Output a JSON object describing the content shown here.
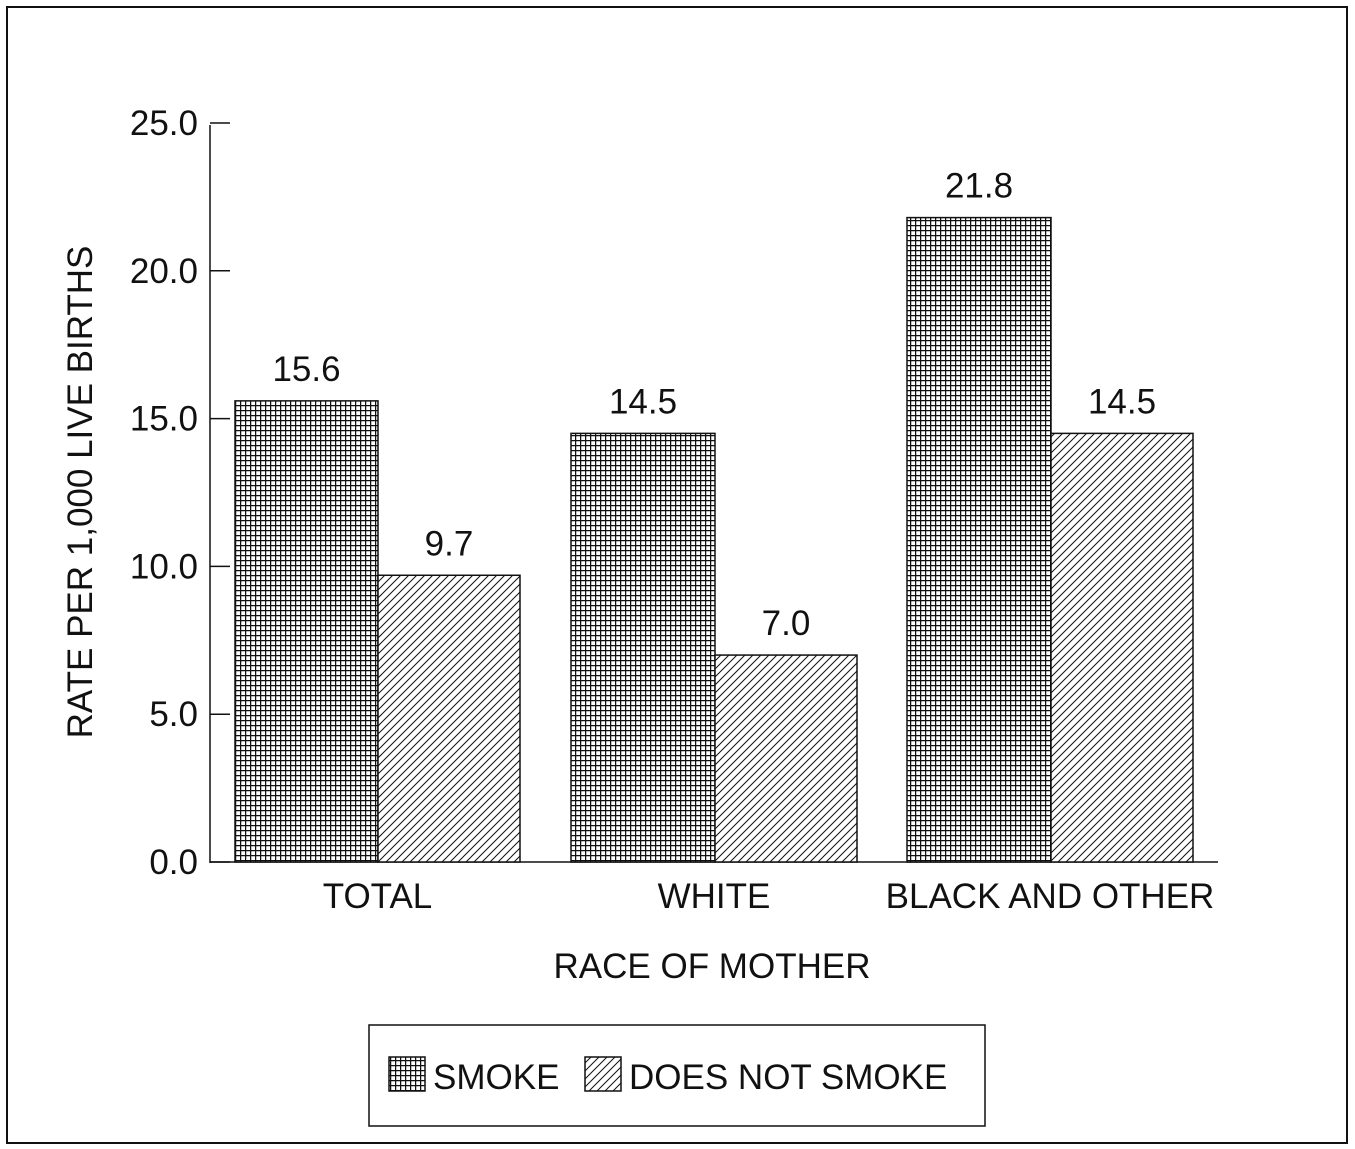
{
  "colors": {
    "ink": "#111111",
    "background": "#ffffff"
  },
  "chart_data": {
    "type": "bar",
    "title": "",
    "xlabel": "RACE OF MOTHER",
    "ylabel": "RATE PER 1,000 LIVE BIRTHS",
    "ylim": [
      0,
      25
    ],
    "yticks": [
      "0.0",
      "5.0",
      "10.0",
      "15.0",
      "20.0",
      "25.0"
    ],
    "categories": [
      "TOTAL",
      "WHITE",
      "BLACK AND OTHER"
    ],
    "series": [
      {
        "name": "SMOKE",
        "pattern": "crosshatch-grid",
        "values": [
          15.6,
          14.5,
          21.8
        ],
        "labels": [
          "15.6",
          "14.5",
          "21.8"
        ]
      },
      {
        "name": "DOES NOT SMOKE",
        "pattern": "diagonal-hatch",
        "values": [
          9.7,
          7.0,
          14.5
        ],
        "labels": [
          "9.7",
          "7.0",
          "14.5"
        ]
      }
    ],
    "legend_placement": "bottom-center",
    "grid": false
  }
}
